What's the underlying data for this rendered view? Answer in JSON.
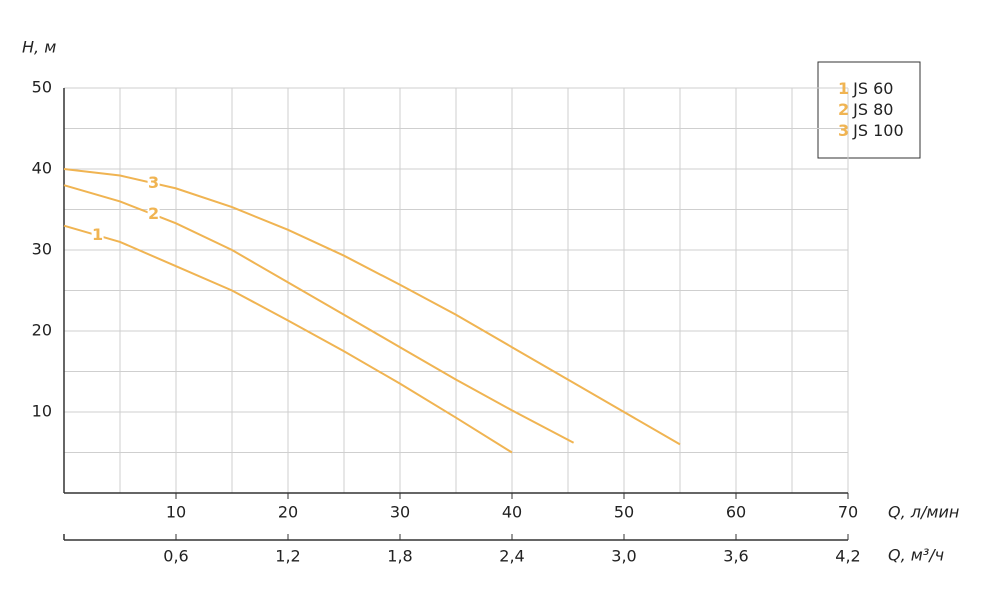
{
  "chart_data": {
    "type": "line",
    "y_label": "H, м",
    "x_label": "Q, л/мин",
    "x2_label": "Q, м³/ч",
    "xlim": [
      0,
      70
    ],
    "xticks": [
      10,
      20,
      30,
      40,
      50,
      60,
      70
    ],
    "x2lim": [
      0,
      4.2
    ],
    "x2ticks": [
      {
        "value": 0.6,
        "label": "0,6"
      },
      {
        "value": 1.2,
        "label": "1,2"
      },
      {
        "value": 1.8,
        "label": "1,8"
      },
      {
        "value": 2.4,
        "label": "2,4"
      },
      {
        "value": 3.0,
        "label": "3,0"
      },
      {
        "value": 3.6,
        "label": "3,6"
      },
      {
        "value": 4.2,
        "label": "4,2"
      }
    ],
    "ylim": [
      0,
      50
    ],
    "yticks": [
      10,
      20,
      30,
      40,
      50
    ],
    "xgrid": [
      5,
      10,
      15,
      20,
      25,
      30,
      35,
      40,
      45,
      50,
      55,
      60,
      65,
      70
    ],
    "ygrid": [
      5,
      10,
      15,
      20,
      25,
      30,
      35,
      40,
      45,
      50
    ],
    "legend": "top-right",
    "series": [
      {
        "label": "1",
        "name": "JS 60",
        "color": "#f0b452",
        "x": [
          0,
          5,
          10,
          15,
          20,
          25,
          30,
          35,
          40
        ],
        "values": [
          33,
          31,
          28,
          25,
          21.3,
          17.5,
          13.5,
          9.3,
          5
        ]
      },
      {
        "label": "2",
        "name": "JS 80",
        "color": "#f0b452",
        "x": [
          0,
          5,
          10,
          15,
          20,
          25,
          30,
          35,
          40,
          45.5
        ],
        "values": [
          38,
          36,
          33.3,
          30,
          26,
          22,
          18,
          14,
          10.2,
          6.2
        ]
      },
      {
        "label": "3",
        "name": "JS 100",
        "color": "#f0b452",
        "x": [
          0,
          5,
          10,
          15,
          20,
          25,
          30,
          35,
          40,
          45,
          50,
          55
        ],
        "values": [
          40,
          39.2,
          37.6,
          35.3,
          32.5,
          29.3,
          25.7,
          22,
          18,
          14,
          10,
          6
        ]
      }
    ]
  }
}
